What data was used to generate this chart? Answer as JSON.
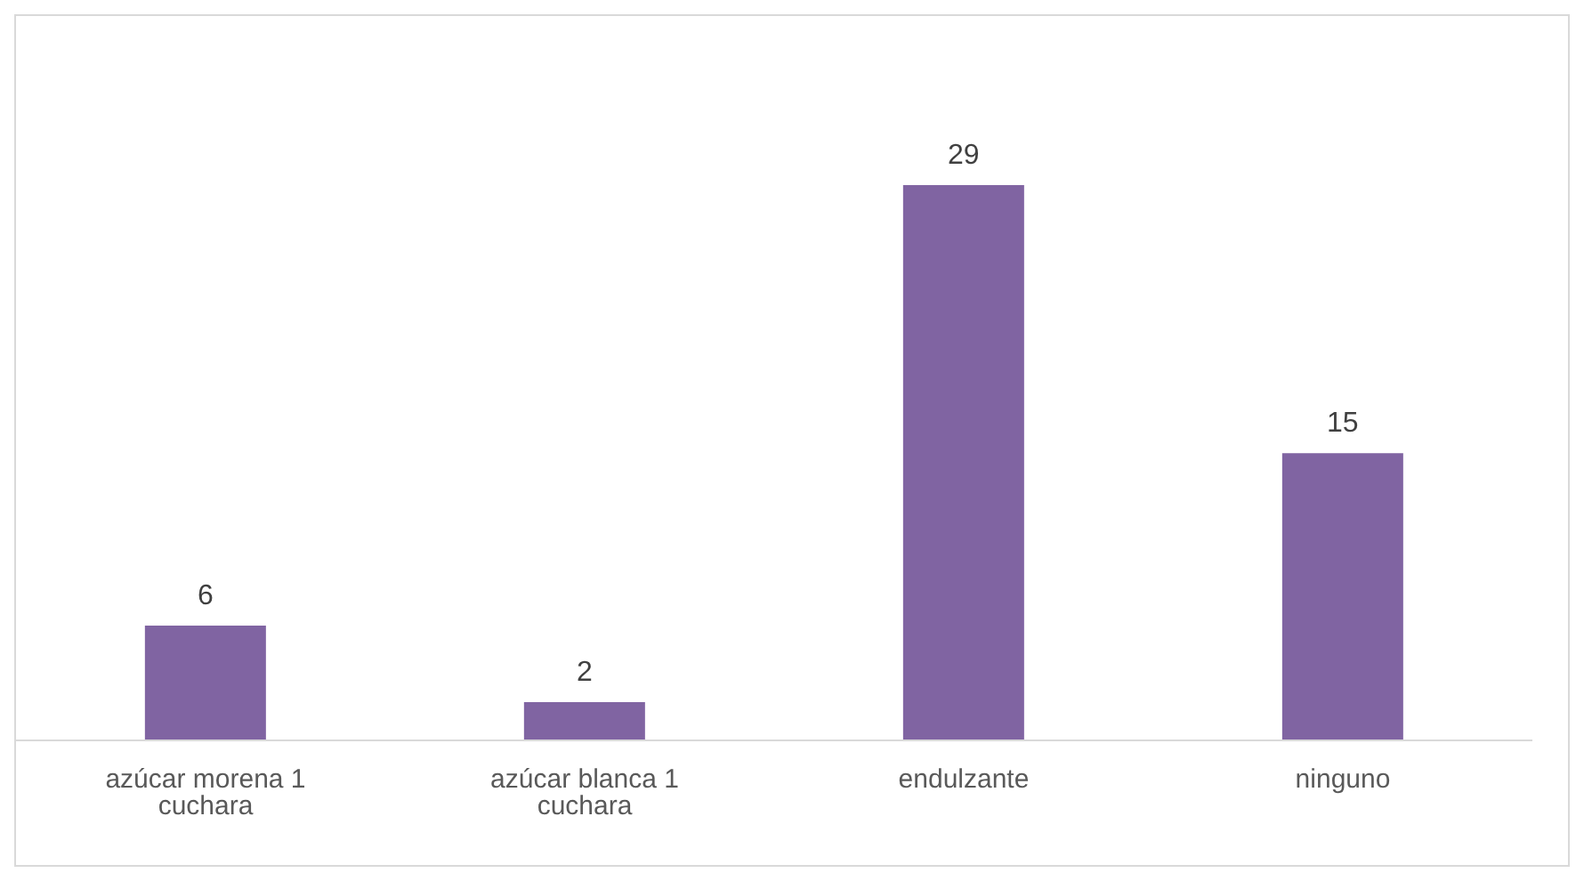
{
  "chart_data": {
    "type": "bar",
    "categories": [
      "azúcar morena 1 cuchara",
      "azúcar blanca 1 cuchara",
      "endulzante",
      "ninguno"
    ],
    "values": [
      6,
      2,
      29,
      15
    ],
    "color": "#8064a2",
    "data_labels": true
  }
}
